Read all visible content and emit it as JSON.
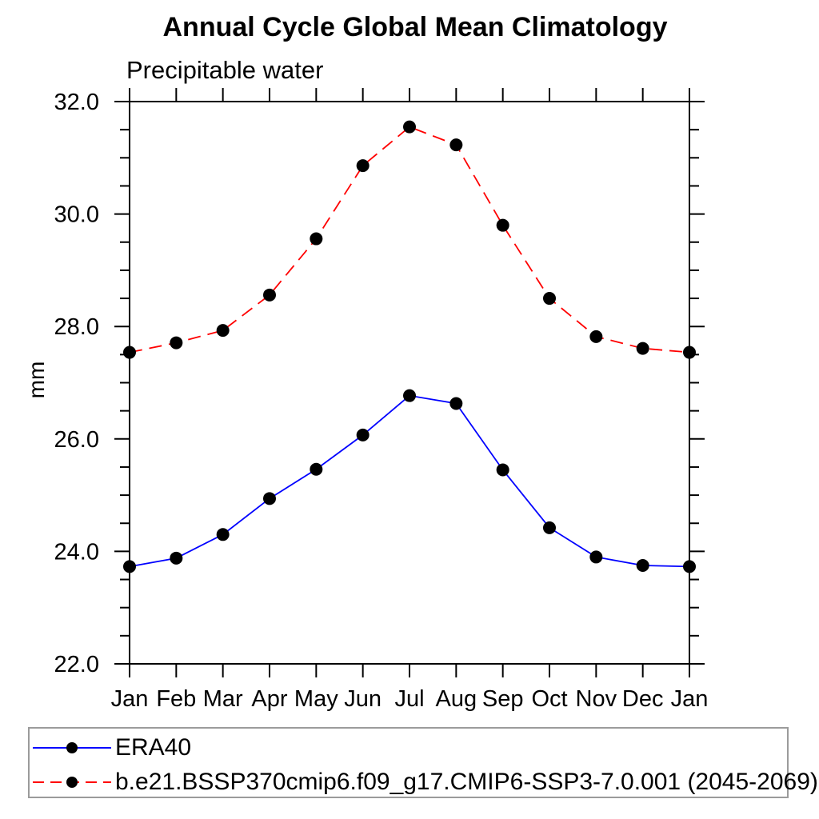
{
  "chart_data": {
    "type": "line",
    "title": "Annual Cycle Global Mean Climatology",
    "subtitle": "Precipitable water",
    "ylabel": "mm",
    "xlabel": "",
    "categories": [
      "Jan",
      "Feb",
      "Mar",
      "Apr",
      "May",
      "Jun",
      "Jul",
      "Aug",
      "Sep",
      "Oct",
      "Nov",
      "Dec",
      "Jan"
    ],
    "ylim": [
      22.0,
      32.0
    ],
    "ytick_values": [
      22,
      24,
      26,
      28,
      30,
      32
    ],
    "ytick_labels": [
      "22.0",
      "24.0",
      "26.0",
      "28.0",
      "30.0",
      "32.0"
    ],
    "minor_tick_step": 0.5,
    "grid": false,
    "legend_position": "bottom-left-box",
    "marker": {
      "shape": "circle",
      "color": "#000000",
      "radius": 8
    },
    "series": [
      {
        "name": "ERA40",
        "color": "#0000ff",
        "style": "solid",
        "values": [
          23.73,
          23.88,
          24.3,
          24.94,
          25.46,
          26.07,
          26.77,
          26.63,
          25.45,
          24.42,
          23.9,
          23.75,
          23.73
        ]
      },
      {
        "name": "b.e21.BSSP370cmip6.f09_g17.CMIP6-SSP3-7.0.001 (2045-2069)",
        "color": "#ff0000",
        "style": "dashed",
        "values": [
          27.54,
          27.71,
          27.93,
          28.56,
          29.56,
          30.86,
          31.55,
          31.23,
          29.8,
          28.5,
          27.82,
          27.61,
          27.54
        ]
      }
    ]
  }
}
